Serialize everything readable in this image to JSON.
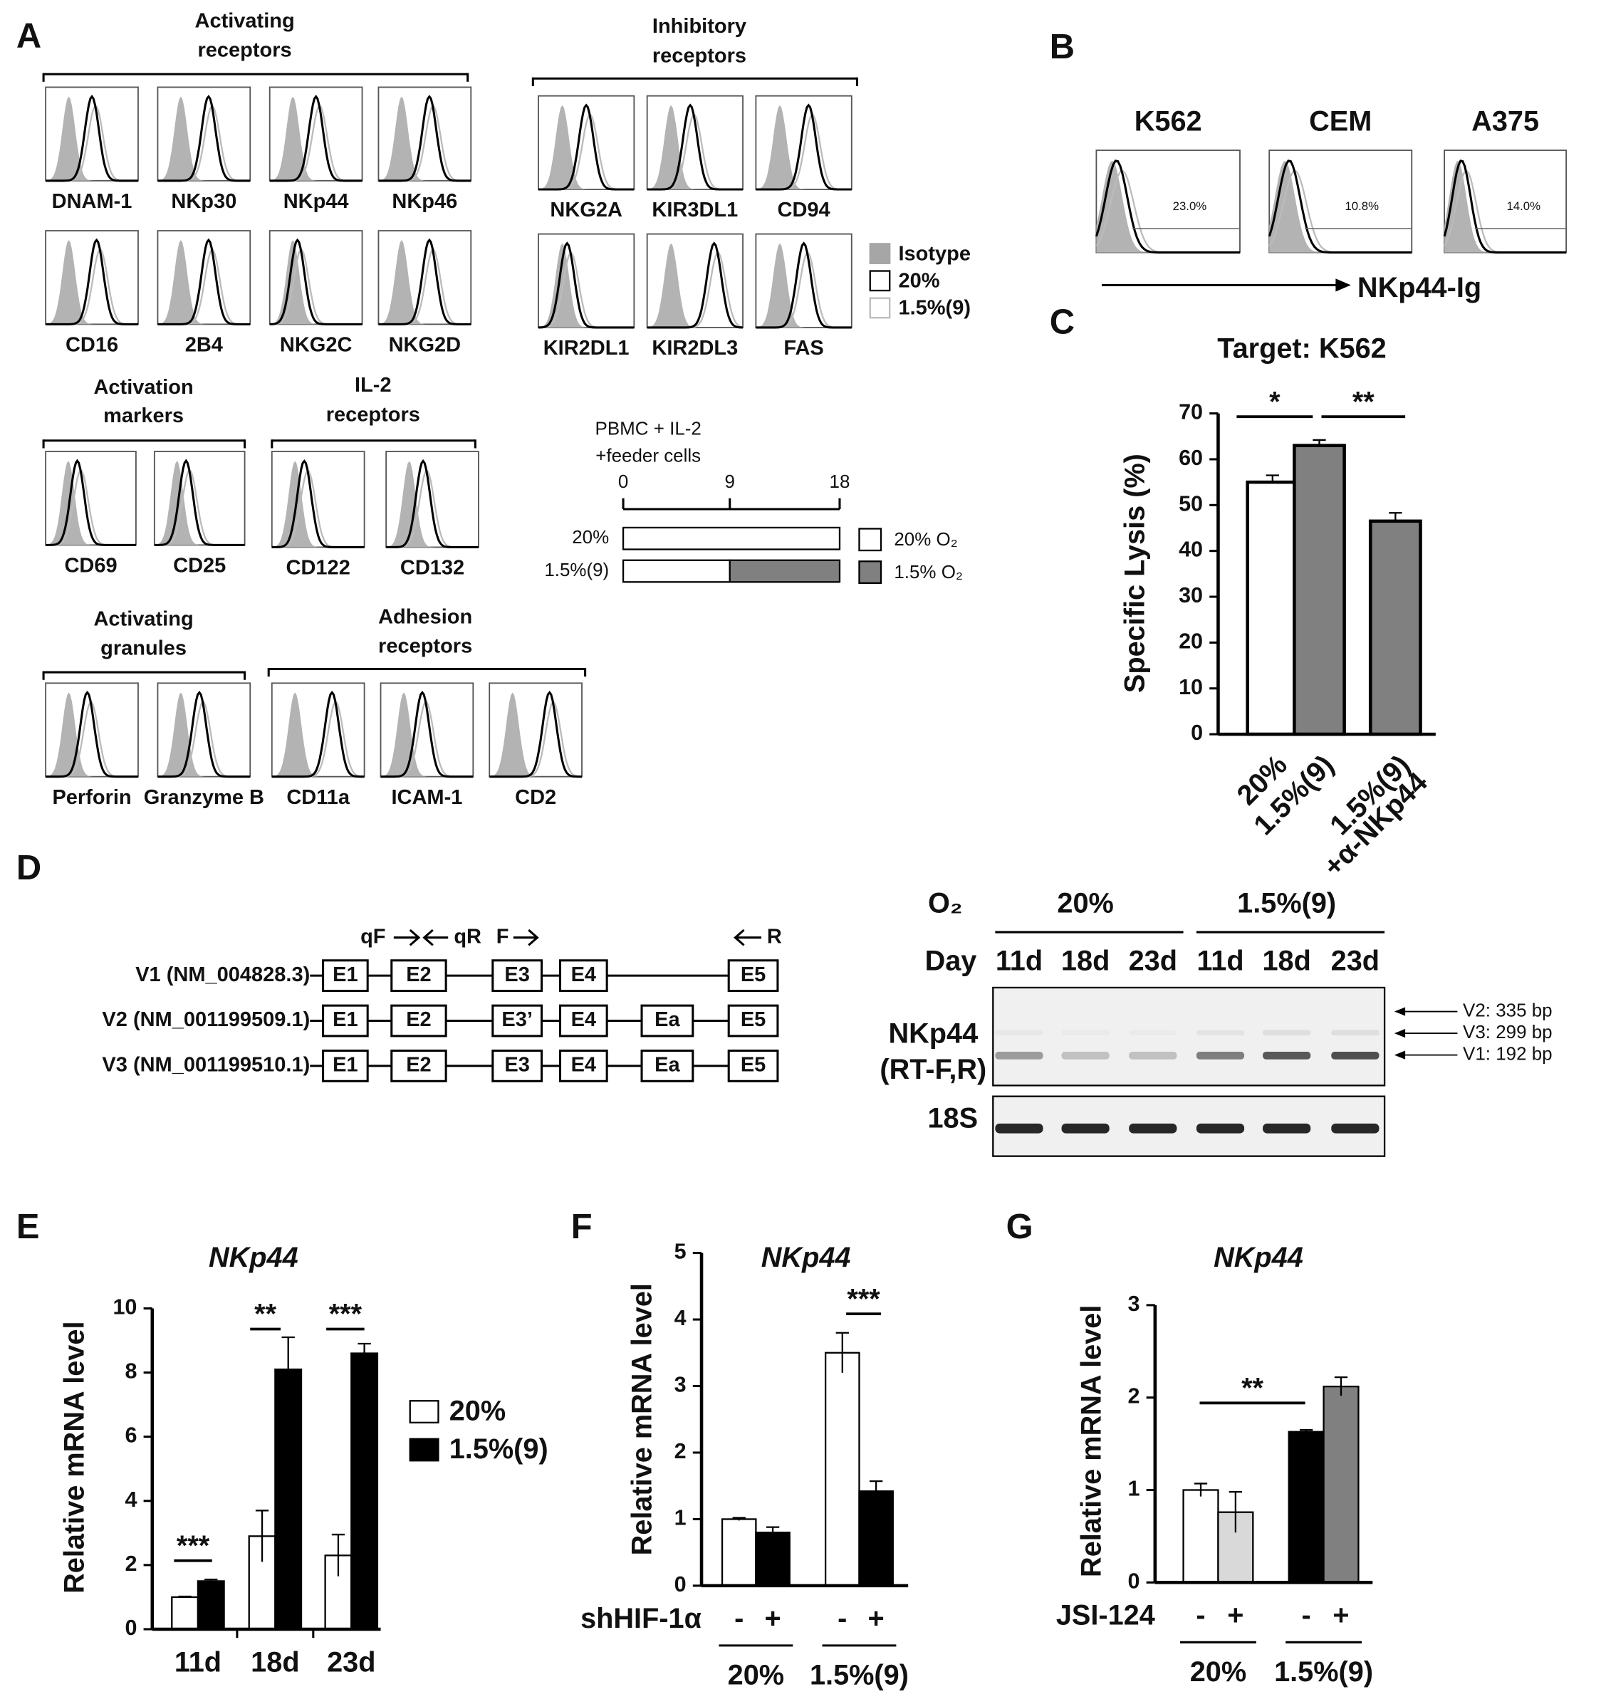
{
  "panel_labels": [
    "A",
    "B",
    "C",
    "D",
    "E",
    "F",
    "G"
  ],
  "panel_a": {
    "groups": [
      {
        "title": [
          "Activating",
          "receptors"
        ],
        "items": [
          "DNAM-1",
          "NKp30",
          "NKp44",
          "NKp46",
          "CD16",
          "2B4",
          "NKG2C",
          "NKG2D"
        ]
      },
      {
        "title": [
          "Inhibitory",
          "receptors"
        ],
        "items": [
          "NKG2A",
          "KIR3DL1",
          "CD94",
          "KIR2DL1",
          "KIR2DL3",
          "FAS"
        ]
      },
      {
        "title": [
          "Activation",
          "markers"
        ],
        "items": [
          "CD69",
          "CD25"
        ]
      },
      {
        "title": [
          "IL-2",
          "receptors"
        ],
        "items": [
          "CD122",
          "CD132"
        ]
      },
      {
        "title": [
          "Activating",
          "granules"
        ],
        "items": [
          "Perforin",
          "Granzyme B"
        ]
      },
      {
        "title": [
          "Adhesion",
          "receptors"
        ],
        "items": [
          "CD11a",
          "ICAM-1",
          "CD2"
        ]
      }
    ],
    "legend": [
      "Isotype",
      "20%",
      "1.5%(9)"
    ],
    "timeline": {
      "title": [
        "PBMC + IL-2",
        "+feeder cells"
      ],
      "days": [
        "0",
        "9",
        "18"
      ],
      "rows": [
        "20%",
        "1.5%(9)"
      ],
      "legend": [
        "20% O₂",
        "1.5% O₂"
      ]
    }
  },
  "panel_b": {
    "cells": [
      {
        "name": "K562",
        "percent": "23.0%"
      },
      {
        "name": "CEM",
        "percent": "10.8%"
      },
      {
        "name": "A375",
        "percent": "14.0%"
      }
    ],
    "axis_label": "NKp44-Ig"
  },
  "panel_d": {
    "primers": [
      "qF",
      "qR",
      "F",
      "R"
    ],
    "variants": [
      {
        "name": "V1 (NM_004828.3)",
        "exons": [
          "E1",
          "E2",
          "E3",
          "E4",
          "E5"
        ]
      },
      {
        "name": "V2 (NM_001199509.1)",
        "exons": [
          "E1",
          "E2",
          "E3’",
          "E4",
          "Ea",
          "E5"
        ]
      },
      {
        "name": "V3 (NM_001199510.1)",
        "exons": [
          "E1",
          "E2",
          "E3",
          "E4",
          "Ea",
          "E5"
        ]
      }
    ],
    "gel": {
      "o2_label": "O₂",
      "conditions": [
        "20%",
        "1.5%(9)"
      ],
      "day_label": "Day",
      "days": [
        "11d",
        "18d",
        "23d",
        "11d",
        "18d",
        "23d"
      ],
      "rows": [
        [
          "NKp44",
          "(RT-F,R)"
        ],
        [
          "18S"
        ]
      ],
      "bands": [
        "V2: 335 bp",
        "V3: 299 bp",
        "V1: 192 bp"
      ]
    }
  },
  "chart_data": [
    {
      "type": "bar",
      "title": "Target: K562",
      "ylabel": "Specific Lysis (%)",
      "categories": [
        "20%",
        "1.5%(9)",
        [
          "1.5%(9)",
          "+α-NKp44"
        ]
      ],
      "values": [
        55,
        63,
        46.5
      ],
      "errors": [
        1.5,
        1.2,
        1.8
      ],
      "colors": [
        "#ffffff",
        "#808080",
        "#808080"
      ],
      "ylim": [
        0,
        70
      ],
      "yticks": [
        0,
        10,
        20,
        30,
        40,
        50,
        60,
        70
      ],
      "annotations": [
        "*",
        "**"
      ]
    },
    {
      "type": "grouped_bar",
      "title": "NKp44",
      "ylabel": "Relative mRNA level",
      "categories": [
        "11d",
        "18d",
        "23d"
      ],
      "series": [
        {
          "name": "20%",
          "color": "#ffffff",
          "values": [
            1,
            2.9,
            2.3
          ],
          "errors": [
            0.02,
            0.8,
            0.65
          ]
        },
        {
          "name": "1.5%(9)",
          "color": "#000000",
          "values": [
            1.5,
            8.1,
            8.6
          ],
          "errors": [
            0.05,
            1.0,
            0.3
          ]
        }
      ],
      "ylim": [
        0,
        10
      ],
      "yticks": [
        0,
        2,
        4,
        6,
        8,
        10
      ],
      "legend": true,
      "annotations": [
        "***",
        "**",
        "***"
      ]
    },
    {
      "type": "grouped_bar",
      "title": "NKp44",
      "ylabel": "Relative mRNA level",
      "row_label": "shHIF-1α",
      "categories": [
        "20%",
        "1.5%(9)"
      ],
      "series": [
        {
          "name": "-",
          "colors": [
            "#ffffff",
            "#ffffff"
          ],
          "values": [
            1.0,
            3.5
          ],
          "errors": [
            0.02,
            0.3
          ]
        },
        {
          "name": "+",
          "colors": [
            "#000000",
            "#000000"
          ],
          "values": [
            0.8,
            1.42
          ],
          "errors": [
            0.08,
            0.15
          ]
        }
      ],
      "ylim": [
        0,
        5
      ],
      "yticks": [
        0,
        1,
        2,
        3,
        4,
        5
      ],
      "annotations": [
        "***"
      ]
    },
    {
      "type": "grouped_bar",
      "title": "NKp44",
      "ylabel": "Relative mRNA level",
      "row_label": "JSI-124",
      "categories": [
        "20%",
        "1.5%(9)"
      ],
      "series": [
        {
          "name": "-",
          "colors": [
            "#ffffff",
            "#000000"
          ],
          "values": [
            1.0,
            1.63
          ],
          "errors": [
            0.07,
            0.02
          ]
        },
        {
          "name": "+",
          "colors": [
            "#d9d9d9",
            "#808080"
          ],
          "values": [
            0.76,
            2.12
          ],
          "errors": [
            0.22,
            0.1
          ]
        }
      ],
      "ylim": [
        0,
        3
      ],
      "yticks": [
        0,
        1,
        2,
        3
      ],
      "annotations": [
        "**"
      ]
    }
  ]
}
